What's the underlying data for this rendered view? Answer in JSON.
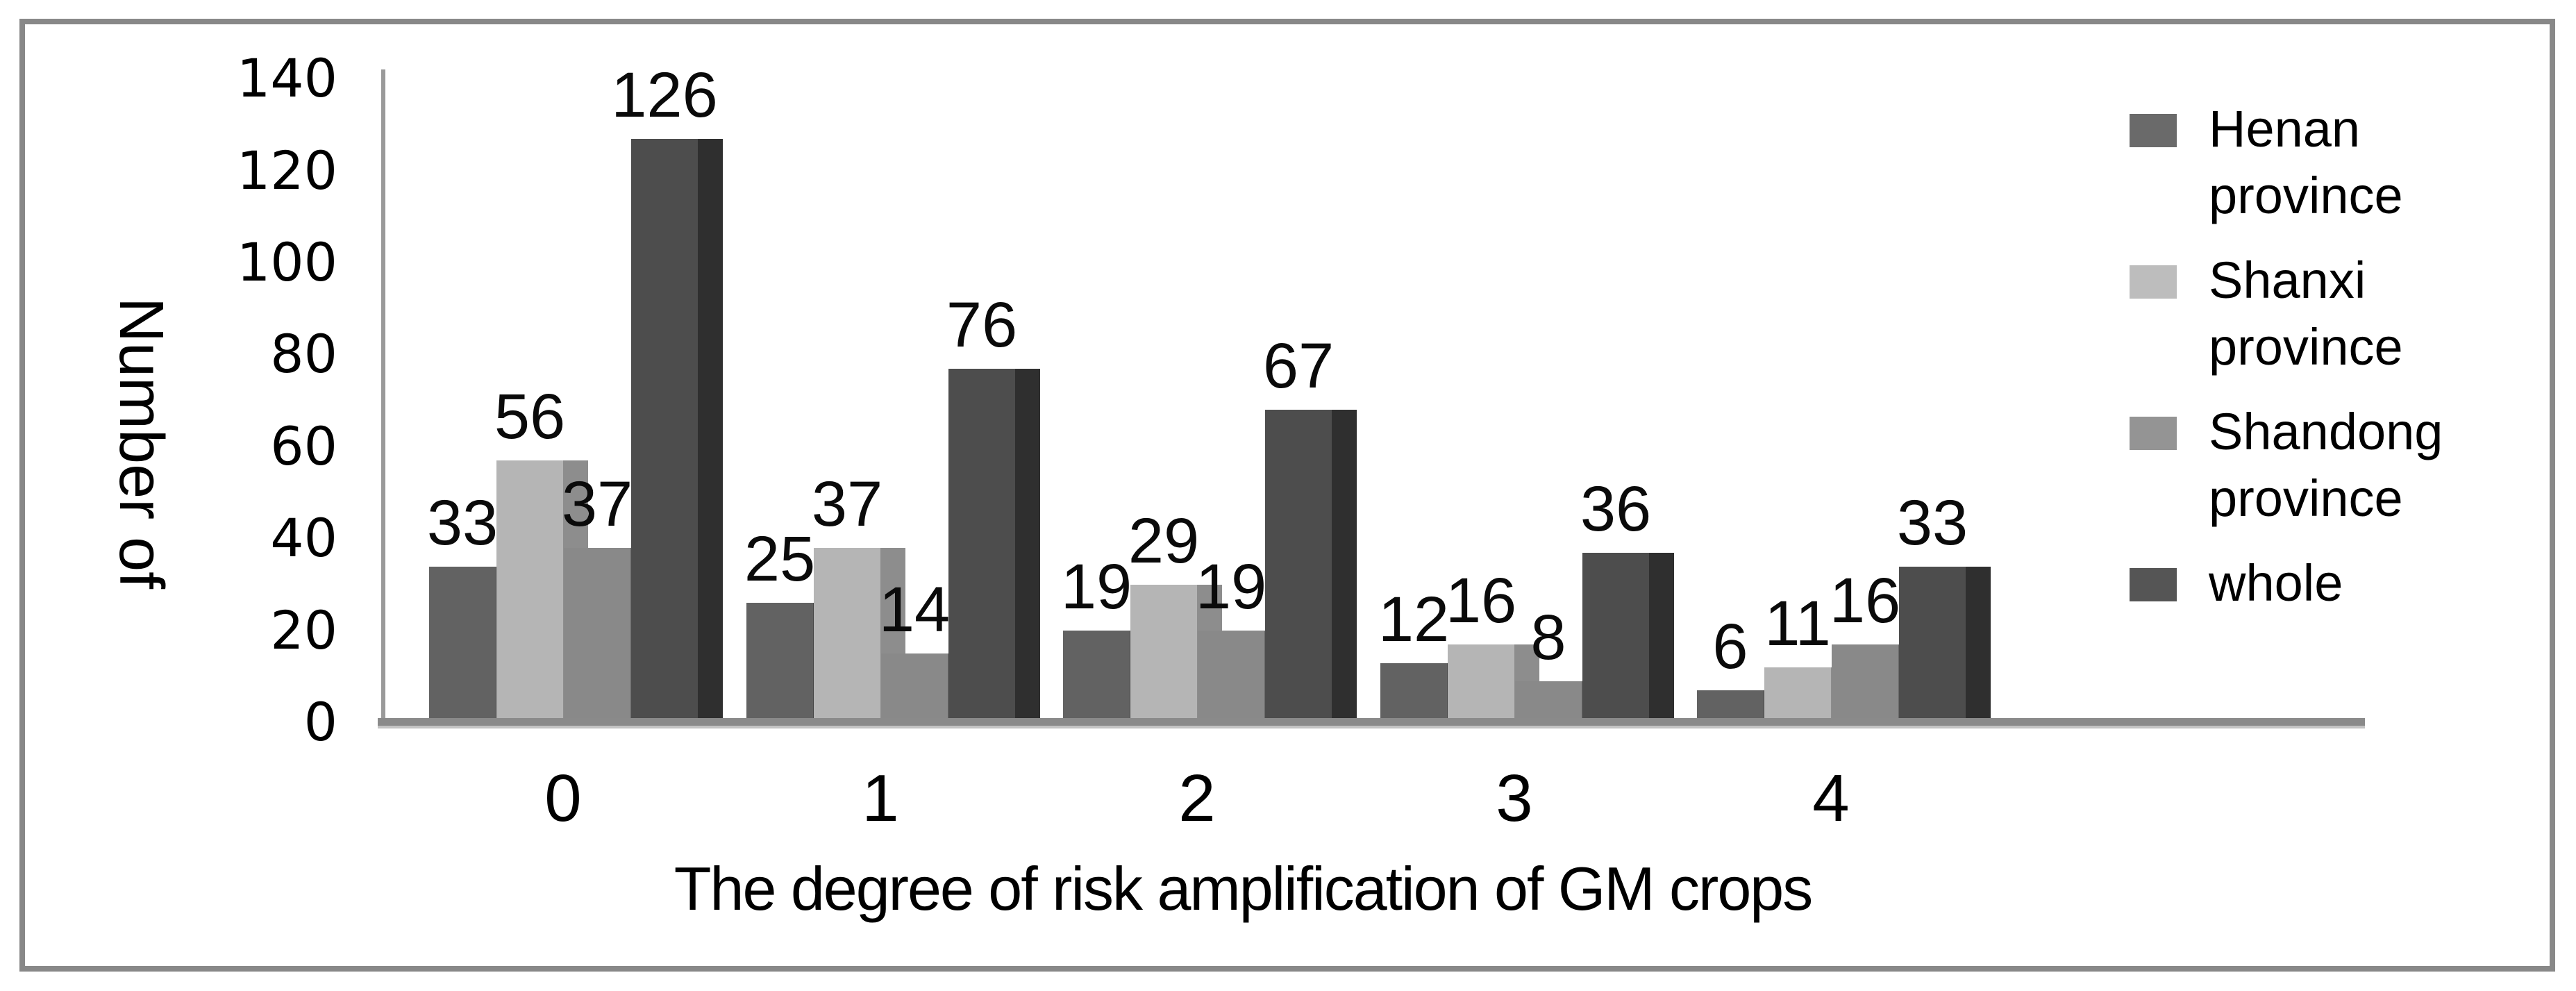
{
  "figure": {
    "frame_color": "#888888",
    "background_color": "#ffffff",
    "axis_line_color": "#8a8a8a",
    "text_color": "#000000"
  },
  "y_axis": {
    "title": "Number of",
    "tick_labels": [
      "0",
      "20",
      "40",
      "60",
      "80",
      "100",
      "120",
      "140"
    ]
  },
  "x_axis": {
    "title": "The degree of risk amplification of GM crops",
    "category_labels": [
      "0",
      "1",
      "2",
      "3",
      "4"
    ]
  },
  "legend": {
    "items": [
      {
        "label": "Henan province",
        "color": "#6a6a6a"
      },
      {
        "label": "Shanxi province",
        "color": "#bdbdbd"
      },
      {
        "label": "Shandong province",
        "color": "#949494"
      },
      {
        "label": "whole",
        "color": "#555555"
      }
    ]
  },
  "chart_data": {
    "type": "bar",
    "title": "",
    "xlabel": "The degree of risk amplification of GM crops",
    "ylabel": "Number of",
    "categories": [
      "0",
      "1",
      "2",
      "3",
      "4"
    ],
    "series": [
      {
        "name": "Henan province",
        "color": "#626262",
        "edge_color": "#454545",
        "values": [
          33,
          25,
          19,
          12,
          6
        ]
      },
      {
        "name": "Shanxi province",
        "color": "#b5b5b5",
        "edge_color": "#8d8d8d",
        "values": [
          56,
          37,
          29,
          16,
          11
        ]
      },
      {
        "name": "Shandong province",
        "color": "#898989",
        "edge_color": "#686868",
        "values": [
          37,
          14,
          19,
          8,
          16
        ]
      },
      {
        "name": "whole",
        "color": "#4d4d4d",
        "edge_color": "#2f2f2f",
        "values": [
          126,
          76,
          67,
          36,
          33
        ]
      }
    ],
    "ylim": [
      0,
      140
    ],
    "ytick_step": 20,
    "grid": false,
    "legend_position": "right",
    "data_labels": "outside-end"
  }
}
